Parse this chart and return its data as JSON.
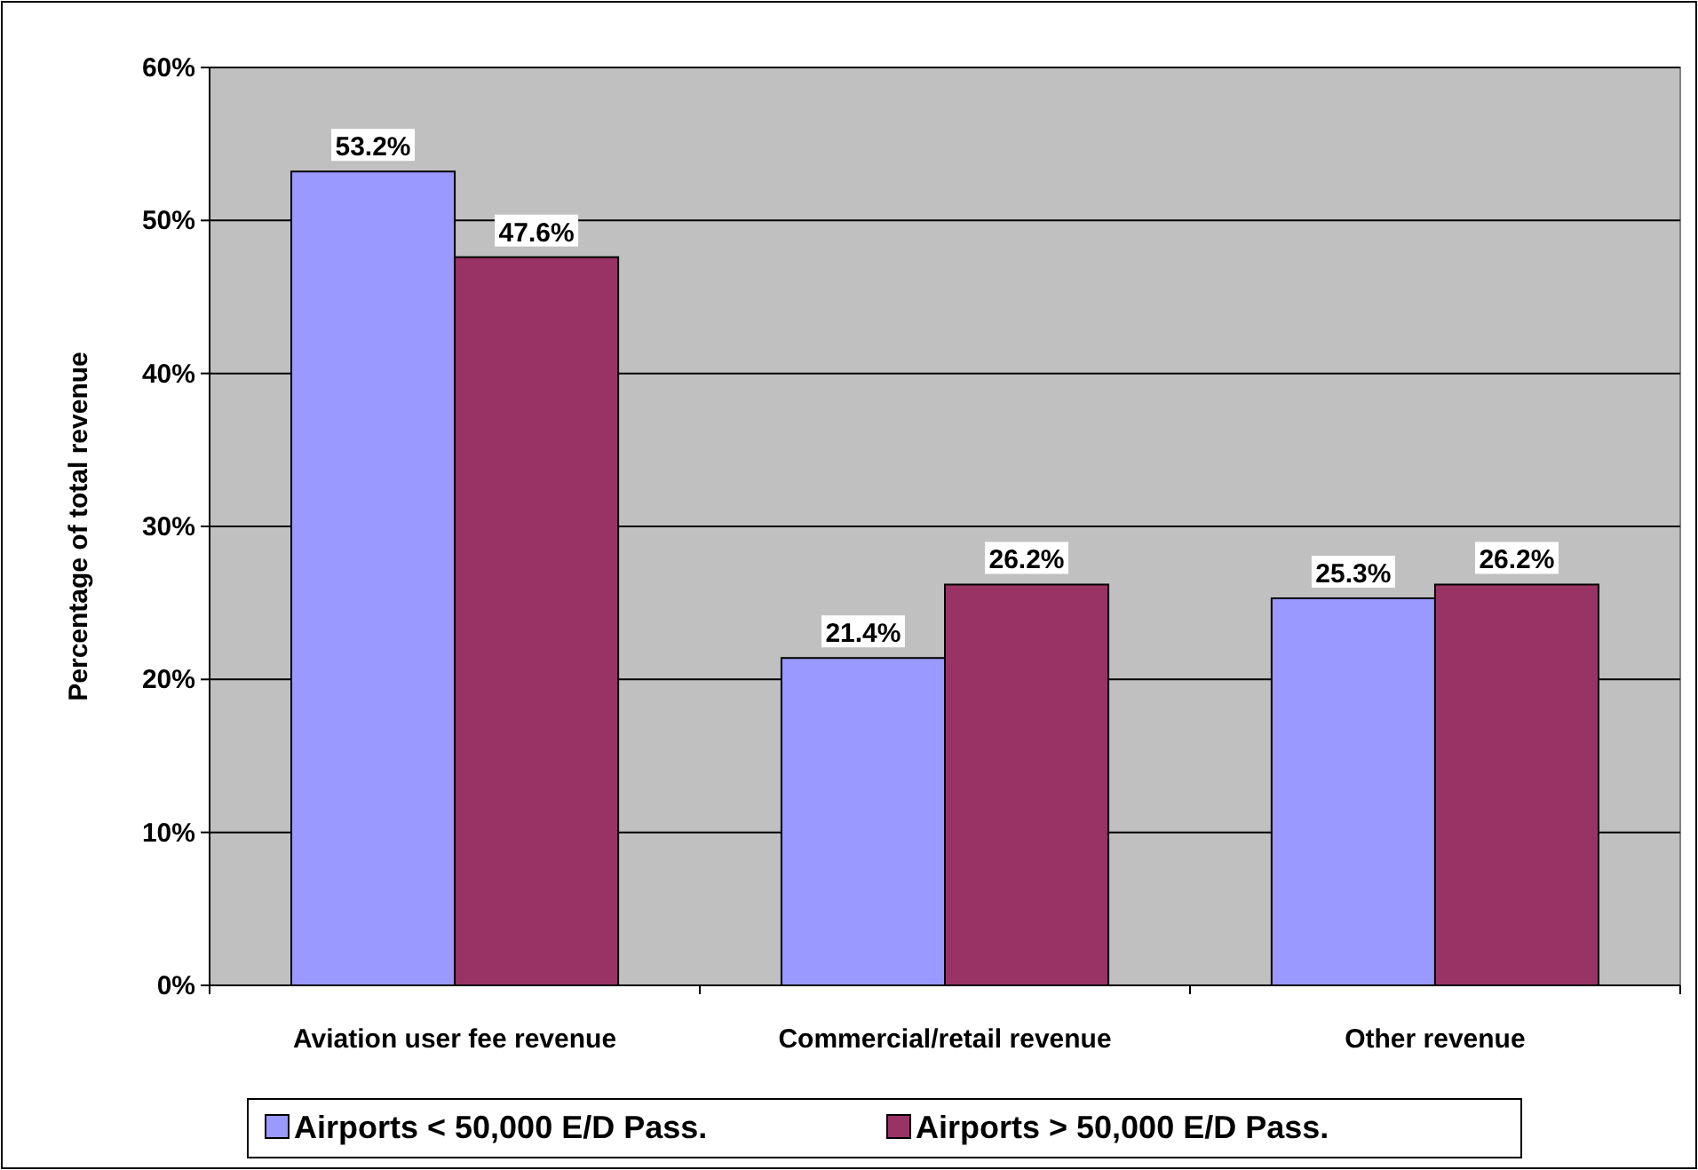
{
  "chart_data": {
    "type": "bar",
    "ylabel": "Percentage of total revenue",
    "categories": [
      "Aviation user fee revenue",
      "Commercial/retail revenue",
      "Other revenue"
    ],
    "series": [
      {
        "name": "Airports < 50,000 E/D Pass.",
        "color": "#9999ff",
        "values": [
          53.2,
          21.4,
          25.3
        ],
        "value_labels": [
          "53.2%",
          "21.4%",
          "25.3%"
        ]
      },
      {
        "name": "Airports > 50,000 E/D Pass.",
        "color": "#993366",
        "values": [
          47.6,
          26.2,
          26.2
        ],
        "value_labels": [
          "47.6%",
          "26.2%",
          "26.2%"
        ]
      }
    ],
    "ylim": [
      0,
      60
    ],
    "yticks": [
      {
        "value": 0,
        "label": "0%"
      },
      {
        "value": 10,
        "label": "10%"
      },
      {
        "value": 20,
        "label": "20%"
      },
      {
        "value": 30,
        "label": "30%"
      },
      {
        "value": 40,
        "label": "40%"
      },
      {
        "value": 50,
        "label": "50%"
      },
      {
        "value": 60,
        "label": "60%"
      }
    ],
    "grid": "y",
    "legend": "bottom"
  }
}
